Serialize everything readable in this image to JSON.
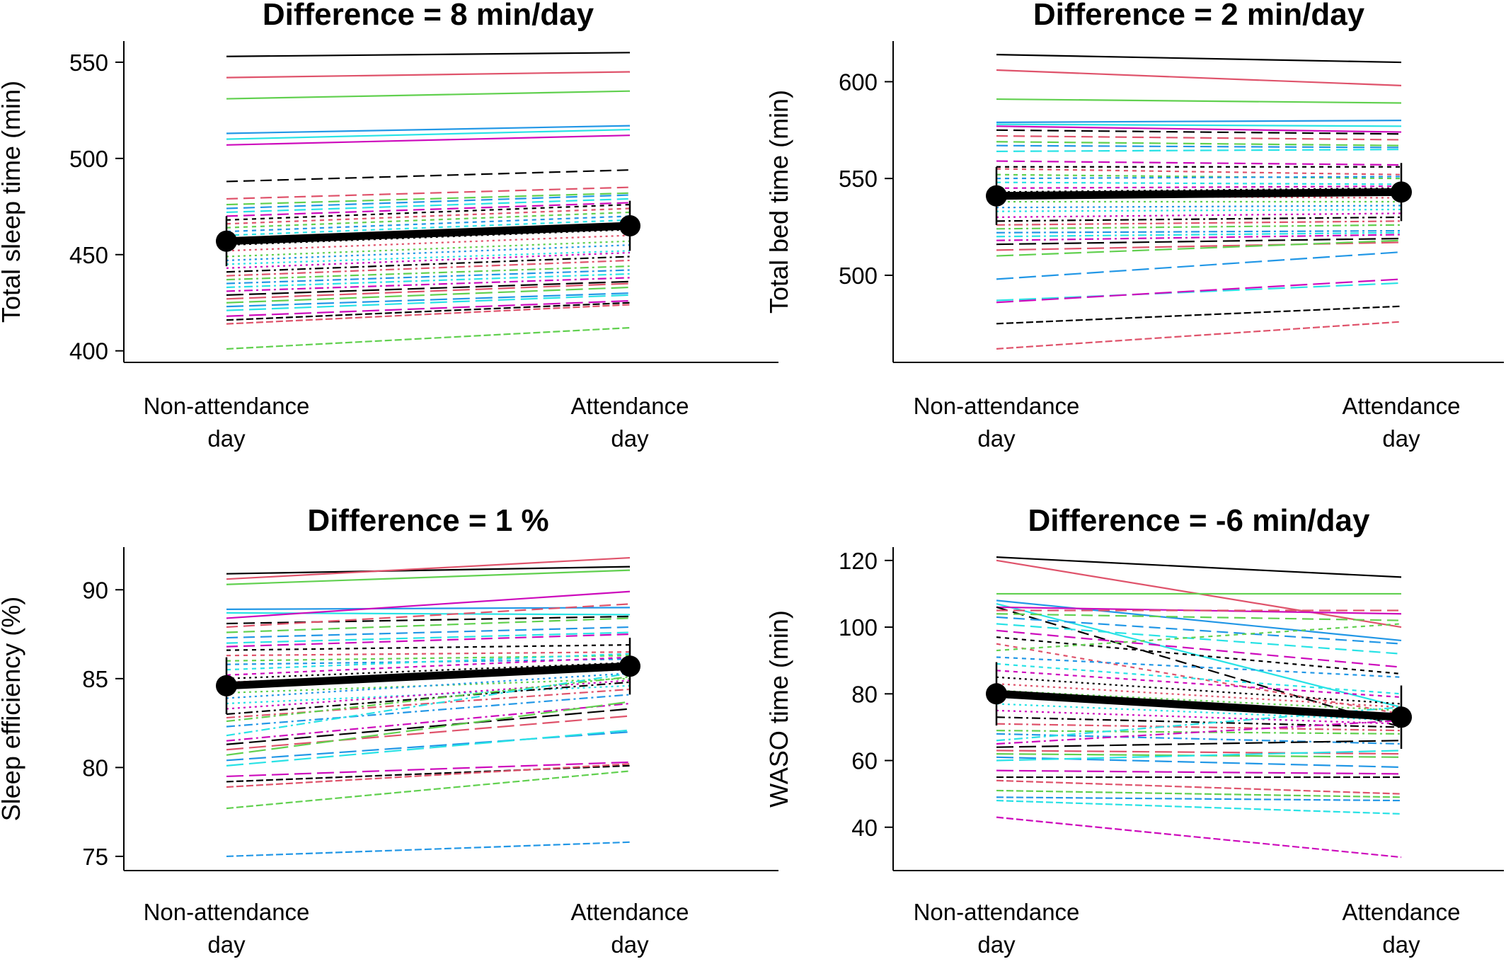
{
  "palette": [
    "#000000",
    "#DF536B",
    "#61D04F",
    "#2297E6",
    "#28E2E5",
    "#CD0BBC"
  ],
  "mean_style": {
    "color": "#000000"
  },
  "chart_data": [
    {
      "type": "line",
      "title": "Difference = 8 min/day",
      "xlabel": "",
      "ylabel": "Total sleep time (min)",
      "categories": [
        "Non-attendance\nday",
        "Attendance\nday"
      ],
      "yticks": [
        400,
        450,
        500,
        550
      ],
      "ylim": [
        394,
        561
      ],
      "grid": false,
      "mean": {
        "values": [
          457,
          465
        ],
        "errors": [
          13,
          13
        ]
      },
      "individuals": [
        [
          553,
          555
        ],
        [
          542,
          545
        ],
        [
          531,
          535
        ],
        [
          513,
          517
        ],
        [
          510,
          515
        ],
        [
          507,
          512
        ],
        [
          488,
          494
        ],
        [
          479,
          485
        ],
        [
          476,
          482
        ],
        [
          474,
          481
        ],
        [
          472,
          479
        ],
        [
          470,
          477
        ],
        [
          468,
          476
        ],
        [
          466,
          474
        ],
        [
          464,
          472
        ],
        [
          462,
          470
        ],
        [
          460,
          468
        ],
        [
          458,
          466
        ],
        [
          455,
          463
        ],
        [
          452,
          460
        ],
        [
          449,
          457
        ],
        [
          447,
          455
        ],
        [
          445,
          452
        ],
        [
          443,
          451
        ],
        [
          441,
          449
        ],
        [
          439,
          447
        ],
        [
          437,
          444
        ],
        [
          435,
          442
        ],
        [
          433,
          440
        ],
        [
          431,
          438
        ],
        [
          429,
          436
        ],
        [
          427,
          435
        ],
        [
          425,
          433
        ],
        [
          423,
          430
        ],
        [
          421,
          429
        ],
        [
          418,
          426
        ],
        [
          416,
          425
        ],
        [
          414,
          424
        ],
        [
          401,
          412
        ]
      ]
    },
    {
      "type": "line",
      "title": "Difference = 2 min/day",
      "xlabel": "",
      "ylabel": "Total bed time (min)",
      "categories": [
        "Non-attendance\nday",
        "Attendance\nday"
      ],
      "yticks": [
        500,
        550,
        600
      ],
      "ylim": [
        455,
        621
      ],
      "grid": false,
      "mean": {
        "values": [
          541,
          543
        ],
        "errors": [
          15,
          15
        ]
      },
      "individuals": [
        [
          614,
          610
        ],
        [
          606,
          598
        ],
        [
          591,
          589
        ],
        [
          579,
          580
        ],
        [
          578,
          577
        ],
        [
          577,
          574
        ],
        [
          575,
          573
        ],
        [
          572,
          570
        ],
        [
          569,
          567
        ],
        [
          567,
          566
        ],
        [
          564,
          565
        ],
        [
          559,
          557
        ],
        [
          556,
          556
        ],
        [
          555,
          552
        ],
        [
          552,
          550
        ],
        [
          550,
          551
        ],
        [
          548,
          547
        ],
        [
          545,
          546
        ],
        [
          543,
          545
        ],
        [
          541,
          540
        ],
        [
          538,
          538
        ],
        [
          535,
          536
        ],
        [
          533,
          534
        ],
        [
          530,
          532
        ],
        [
          528,
          530
        ],
        [
          526,
          528
        ],
        [
          524,
          526
        ],
        [
          522,
          523
        ],
        [
          520,
          522
        ],
        [
          518,
          521
        ],
        [
          516,
          519
        ],
        [
          513,
          517
        ],
        [
          510,
          518
        ],
        [
          498,
          512
        ],
        [
          487,
          496
        ],
        [
          486,
          498
        ],
        [
          475,
          484
        ],
        [
          462,
          476
        ]
      ]
    },
    {
      "type": "line",
      "title": "Difference = 1 %",
      "xlabel": "",
      "ylabel": "Sleep efficiency (%)",
      "categories": [
        "Non-attendance\nday",
        "Attendance\nday"
      ],
      "yticks": [
        75,
        80,
        85,
        90
      ],
      "ylim": [
        74.2,
        92.4
      ],
      "grid": false,
      "mean": {
        "values": [
          84.6,
          85.7
        ],
        "errors": [
          1.6,
          1.6
        ]
      },
      "individuals": [
        [
          90.9,
          91.3
        ],
        [
          90.6,
          91.8
        ],
        [
          90.3,
          91.1
        ],
        [
          88.9,
          89.0
        ],
        [
          88.7,
          88.6
        ],
        [
          88.4,
          89.9
        ],
        [
          88.1,
          88.5
        ],
        [
          87.9,
          89.2
        ],
        [
          87.6,
          88.4
        ],
        [
          87.3,
          87.9
        ],
        [
          87.0,
          87.6
        ],
        [
          86.8,
          87.5
        ],
        [
          86.6,
          86.9
        ],
        [
          86.3,
          86.5
        ],
        [
          86.0,
          86.3
        ],
        [
          85.8,
          86.1
        ],
        [
          85.5,
          86.4
        ],
        [
          85.2,
          86.2
        ],
        [
          85.0,
          85.9
        ],
        [
          84.8,
          85.5
        ],
        [
          84.2,
          85.0
        ],
        [
          83.9,
          85.3
        ],
        [
          83.6,
          84.6
        ],
        [
          83.3,
          84.9
        ],
        [
          83.0,
          84.8
        ],
        [
          82.8,
          84.4
        ],
        [
          82.6,
          85.1
        ],
        [
          82.3,
          84.1
        ],
        [
          81.8,
          85.3
        ],
        [
          81.5,
          83.6
        ],
        [
          81.3,
          83.3
        ],
        [
          81.0,
          82.9
        ],
        [
          80.7,
          83.7
        ],
        [
          80.4,
          82.0
        ],
        [
          80.1,
          82.1
        ],
        [
          79.5,
          80.3
        ],
        [
          79.2,
          80.1
        ],
        [
          78.9,
          80.2
        ],
        [
          77.7,
          79.8
        ],
        [
          75.0,
          75.8
        ]
      ]
    },
    {
      "type": "line",
      "title": "Difference = -6 min/day",
      "xlabel": "",
      "ylabel": "WASO time (min)",
      "categories": [
        "Non-attendance\nday",
        "Attendance\nday"
      ],
      "yticks": [
        40,
        60,
        80,
        100,
        120
      ],
      "ylim": [
        27,
        124
      ],
      "grid": false,
      "mean": {
        "values": [
          80,
          73
        ],
        "errors": [
          9.5,
          9.5
        ]
      },
      "individuals": [
        [
          121,
          115
        ],
        [
          120,
          100
        ],
        [
          110,
          110
        ],
        [
          108,
          96
        ],
        [
          107,
          76
        ],
        [
          106,
          104
        ],
        [
          106,
          70
        ],
        [
          105,
          105
        ],
        [
          104,
          102
        ],
        [
          103,
          95
        ],
        [
          101,
          92
        ],
        [
          99,
          88
        ],
        [
          97,
          86
        ],
        [
          95,
          74
        ],
        [
          93,
          101
        ],
        [
          91,
          85
        ],
        [
          89,
          80
        ],
        [
          87,
          79
        ],
        [
          85,
          77
        ],
        [
          83,
          76
        ],
        [
          81,
          75
        ],
        [
          79,
          74
        ],
        [
          77,
          72
        ],
        [
          75,
          71
        ],
        [
          73,
          70
        ],
        [
          71,
          69
        ],
        [
          69,
          68
        ],
        [
          68,
          65
        ],
        [
          66,
          76
        ],
        [
          65,
          72
        ],
        [
          64,
          66
        ],
        [
          63,
          62
        ],
        [
          62,
          61
        ],
        [
          61,
          58
        ],
        [
          60,
          63
        ],
        [
          57,
          56
        ],
        [
          55,
          55
        ],
        [
          54,
          50
        ],
        [
          51,
          49
        ],
        [
          49,
          48
        ],
        [
          48,
          44
        ],
        [
          43,
          31
        ]
      ]
    }
  ]
}
